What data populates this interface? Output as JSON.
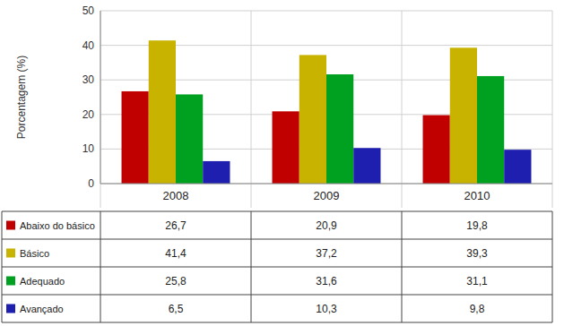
{
  "chart_data": {
    "type": "bar",
    "y_label": "Porcentagem (%)",
    "categories": [
      "2008",
      "2009",
      "2010"
    ],
    "series": [
      {
        "name": "Abaixo do básico",
        "color": "#C00000",
        "values": [
          26.7,
          20.9,
          19.8
        ],
        "value_labels": [
          "26,7",
          "20,9",
          "19,8"
        ]
      },
      {
        "name": "Básico",
        "color": "#C8B400",
        "values": [
          41.4,
          37.2,
          39.3
        ],
        "value_labels": [
          "41,4",
          "37,2",
          "39,3"
        ]
      },
      {
        "name": "Adequado",
        "color": "#00A020",
        "values": [
          25.8,
          31.6,
          31.1
        ],
        "value_labels": [
          "25,8",
          "31,6",
          "31,1"
        ]
      },
      {
        "name": "Avançado",
        "color": "#1F1FAF",
        "values": [
          6.5,
          10.3,
          9.8
        ],
        "value_labels": [
          "6,5",
          "10,3",
          "9,8"
        ]
      }
    ],
    "ylim": [
      0,
      50
    ],
    "yticks": [
      0,
      10,
      20,
      30,
      40,
      50
    ],
    "grid": true
  }
}
